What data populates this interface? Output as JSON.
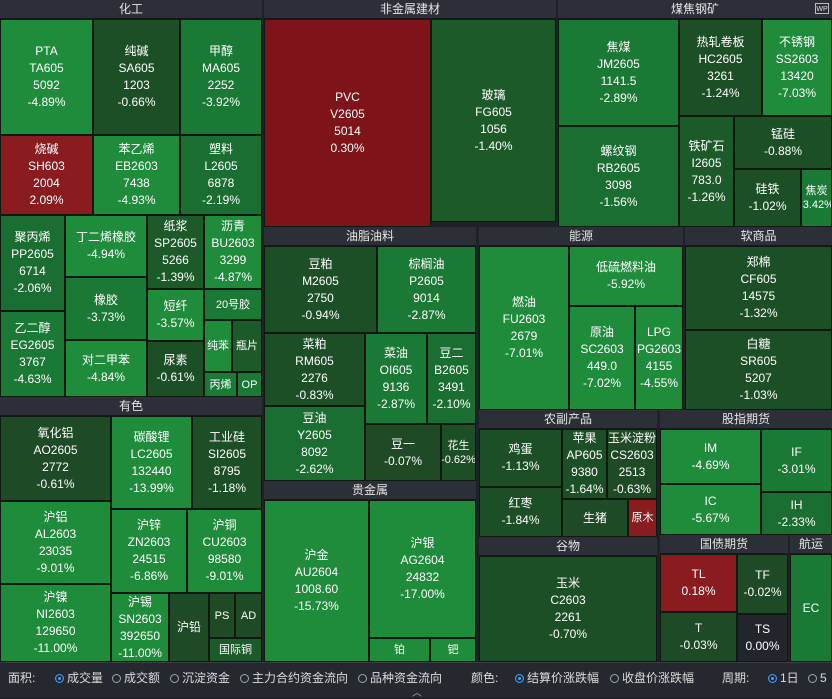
{
  "colors": {
    "down_1": "#1e5a2a",
    "down_2": "#187a34",
    "down_3": "#12923f",
    "up": "#8c1a1e",
    "header_bg": "#2c2f37"
  },
  "sectors": [
    {
      "id": "chem",
      "name": "化工"
    },
    {
      "id": "nonmetal",
      "name": "非金属建材"
    },
    {
      "id": "coal",
      "name": "煤焦钢矿"
    },
    {
      "id": "oil",
      "name": "油脂油料"
    },
    {
      "id": "energy",
      "name": "能源"
    },
    {
      "id": "soft",
      "name": "软商品"
    },
    {
      "id": "metal",
      "name": "有色"
    },
    {
      "id": "agri",
      "name": "农副产品"
    },
    {
      "id": "index",
      "name": "股指期货"
    },
    {
      "id": "precious",
      "name": "贵金属"
    },
    {
      "id": "grain",
      "name": "谷物"
    },
    {
      "id": "bond",
      "name": "国债期货"
    },
    {
      "id": "ship",
      "name": "航运"
    }
  ],
  "tiles": [
    {
      "name": "PTA",
      "code": "TA605",
      "price": "5092",
      "chg": "-4.89%"
    },
    {
      "name": "纯碱",
      "code": "SA605",
      "price": "1203",
      "chg": "-0.66%"
    },
    {
      "name": "甲醇",
      "code": "MA605",
      "price": "2252",
      "chg": "-3.92%"
    },
    {
      "name": "烧碱",
      "code": "SH603",
      "price": "2004",
      "chg": "2.09%"
    },
    {
      "name": "苯乙烯",
      "code": "EB2603",
      "price": "7438",
      "chg": "-4.93%"
    },
    {
      "name": "塑料",
      "code": "L2605",
      "price": "6878",
      "chg": "-2.19%"
    },
    {
      "name": "聚丙烯",
      "code": "PP2605",
      "price": "6714",
      "chg": "-2.06%"
    },
    {
      "name": "丁二烯橡胶",
      "code": "",
      "price": "",
      "chg": "-4.94%"
    },
    {
      "name": "纸浆",
      "code": "SP2605",
      "price": "5266",
      "chg": "-1.39%"
    },
    {
      "name": "沥青",
      "code": "BU2603",
      "price": "3299",
      "chg": "-4.87%"
    },
    {
      "name": "橡胶",
      "code": "",
      "price": "",
      "chg": "-3.73%"
    },
    {
      "name": "短纤",
      "code": "",
      "price": "",
      "chg": "-3.57%"
    },
    {
      "name": "20号胶",
      "code": "",
      "price": "",
      "chg": ""
    },
    {
      "name": "乙二醇",
      "code": "EG2605",
      "price": "3767",
      "chg": "-4.63%"
    },
    {
      "name": "纯苯",
      "code": "",
      "price": "",
      "chg": ""
    },
    {
      "name": "瓶片",
      "code": "",
      "price": "",
      "chg": ""
    },
    {
      "name": "对二甲苯",
      "code": "",
      "price": "",
      "chg": "-4.84%"
    },
    {
      "name": "尿素",
      "code": "",
      "price": "",
      "chg": "-0.61%"
    },
    {
      "name": "丙烯",
      "code": "",
      "price": "",
      "chg": ""
    },
    {
      "name": "OP",
      "code": "",
      "price": "",
      "chg": ""
    },
    {
      "name": "PVC",
      "code": "V2605",
      "price": "5014",
      "chg": "0.30%"
    },
    {
      "name": "玻璃",
      "code": "FG605",
      "price": "1056",
      "chg": "-1.40%"
    },
    {
      "name": "焦煤",
      "code": "JM2605",
      "price": "1141.5",
      "chg": "-2.89%"
    },
    {
      "name": "热轧卷板",
      "code": "HC2605",
      "price": "3261",
      "chg": "-1.24%"
    },
    {
      "name": "不锈钢",
      "code": "SS2603",
      "price": "13420",
      "chg": "-7.03%"
    },
    {
      "name": "螺纹钢",
      "code": "RB2605",
      "price": "3098",
      "chg": "-1.56%"
    },
    {
      "name": "铁矿石",
      "code": "I2605",
      "price": "783.0",
      "chg": "-1.26%"
    },
    {
      "name": "锰硅",
      "code": "",
      "price": "",
      "chg": "-0.88%"
    },
    {
      "name": "硅铁",
      "code": "",
      "price": "",
      "chg": "-1.02%"
    },
    {
      "name": "焦炭",
      "code": "",
      "price": "",
      "chg": "-3.42%"
    },
    {
      "name": "豆粕",
      "code": "M2605",
      "price": "2750",
      "chg": "-0.94%"
    },
    {
      "name": "棕榈油",
      "code": "P2605",
      "price": "9014",
      "chg": "-2.87%"
    },
    {
      "name": "菜粕",
      "code": "RM605",
      "price": "2276",
      "chg": "-0.83%"
    },
    {
      "name": "菜油",
      "code": "OI605",
      "price": "9136",
      "chg": "-2.87%"
    },
    {
      "name": "豆二",
      "code": "B2605",
      "price": "3491",
      "chg": "-2.10%"
    },
    {
      "name": "豆油",
      "code": "Y2605",
      "price": "8092",
      "chg": "-2.62%"
    },
    {
      "name": "豆一",
      "code": "",
      "price": "",
      "chg": "-0.07%"
    },
    {
      "name": "花生",
      "code": "",
      "price": "",
      "chg": "-0.62%"
    },
    {
      "name": "燃油",
      "code": "FU2603",
      "price": "2679",
      "chg": "-7.01%"
    },
    {
      "name": "低硫燃料油",
      "code": "",
      "price": "",
      "chg": "-5.92%"
    },
    {
      "name": "原油",
      "code": "SC2603",
      "price": "449.0",
      "chg": "-7.02%"
    },
    {
      "name": "LPG",
      "code": "PG2603",
      "price": "4155",
      "chg": "-4.55%"
    },
    {
      "name": "郑棉",
      "code": "CF605",
      "price": "14575",
      "chg": "-1.32%"
    },
    {
      "name": "白糖",
      "code": "SR605",
      "price": "5207",
      "chg": "-1.03%"
    },
    {
      "name": "氧化铝",
      "code": "AO2605",
      "price": "2772",
      "chg": "-0.61%"
    },
    {
      "name": "碳酸锂",
      "code": "LC2605",
      "price": "132440",
      "chg": "-13.99%"
    },
    {
      "name": "工业硅",
      "code": "SI2605",
      "price": "8795",
      "chg": "-1.18%"
    },
    {
      "name": "沪铝",
      "code": "AL2603",
      "price": "23035",
      "chg": "-9.01%"
    },
    {
      "name": "沪锌",
      "code": "ZN2603",
      "price": "24515",
      "chg": "-6.86%"
    },
    {
      "name": "沪铜",
      "code": "CU2603",
      "price": "98580",
      "chg": "-9.01%"
    },
    {
      "name": "沪镍",
      "code": "NI2603",
      "price": "129650",
      "chg": "-11.00%"
    },
    {
      "name": "沪锡",
      "code": "SN2603",
      "price": "392650",
      "chg": "-11.00%"
    },
    {
      "name": "沪铅",
      "code": "",
      "price": "",
      "chg": ""
    },
    {
      "name": "PS",
      "code": "",
      "price": "",
      "chg": ""
    },
    {
      "name": "AD",
      "code": "",
      "price": "",
      "chg": ""
    },
    {
      "name": "国际铜",
      "code": "",
      "price": "",
      "chg": ""
    },
    {
      "name": "鸡蛋",
      "code": "",
      "price": "",
      "chg": "-1.13%"
    },
    {
      "name": "苹果",
      "code": "AP605",
      "price": "9380",
      "chg": "-1.64%"
    },
    {
      "name": "玉米淀粉",
      "code": "CS2603",
      "price": "2513",
      "chg": "-0.63%"
    },
    {
      "name": "红枣",
      "code": "",
      "price": "",
      "chg": "-1.84%"
    },
    {
      "name": "生猪",
      "code": "",
      "price": "",
      "chg": ""
    },
    {
      "name": "原木",
      "code": "",
      "price": "",
      "chg": ""
    },
    {
      "name": "IM",
      "code": "",
      "price": "",
      "chg": "-4.69%"
    },
    {
      "name": "IF",
      "code": "",
      "price": "",
      "chg": "-3.01%"
    },
    {
      "name": "IC",
      "code": "",
      "price": "",
      "chg": "-5.67%"
    },
    {
      "name": "IH",
      "code": "",
      "price": "",
      "chg": "-2.33%"
    },
    {
      "name": "沪金",
      "code": "AU2604",
      "price": "1008.60",
      "chg": "-15.73%"
    },
    {
      "name": "沪银",
      "code": "AG2604",
      "price": "24832",
      "chg": "-17.00%"
    },
    {
      "name": "铂",
      "code": "",
      "price": "",
      "chg": ""
    },
    {
      "name": "钯",
      "code": "",
      "price": "",
      "chg": ""
    },
    {
      "name": "玉米",
      "code": "C2603",
      "price": "2261",
      "chg": "-0.70%"
    },
    {
      "name": "TL",
      "code": "",
      "price": "",
      "chg": "0.18%"
    },
    {
      "name": "TF",
      "code": "",
      "price": "",
      "chg": "-0.02%"
    },
    {
      "name": "T",
      "code": "",
      "price": "",
      "chg": "-0.03%"
    },
    {
      "name": "TS",
      "code": "",
      "price": "",
      "chg": "0.00%"
    },
    {
      "name": "EC",
      "code": "",
      "price": "",
      "chg": ""
    }
  ],
  "bottom": {
    "area_label": "面积:",
    "area_options": [
      "成交量",
      "成交额",
      "沉淀资金",
      "主力合约资金流向",
      "品种资金流向"
    ],
    "color_label": "颜色:",
    "color_options": [
      "结算价涨跌幅",
      "收盘价涨跌幅"
    ],
    "period_label": "周期:",
    "period_options": [
      "1日",
      "5"
    ]
  },
  "corner_badge": "WP"
}
